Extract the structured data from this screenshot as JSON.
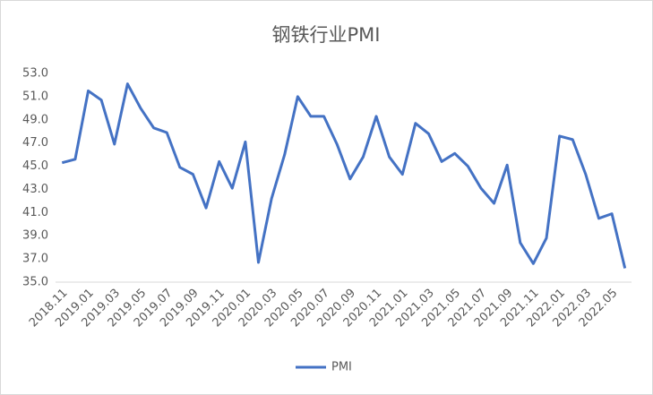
{
  "chart_data": {
    "type": "line",
    "title": "钢铁行业PMI",
    "categories": [
      "2018.11",
      null,
      "2019.01",
      null,
      "2019.03",
      null,
      "2019.05",
      null,
      "2019.07",
      null,
      "2019.09",
      null,
      "2019.11",
      null,
      "2020.01",
      null,
      "2020.03",
      null,
      "2020.05",
      null,
      "2020.07",
      null,
      "2020.09",
      null,
      "2020.11",
      null,
      "2021.01",
      null,
      "2021.03",
      null,
      "2021.05",
      null,
      "2021.07",
      null,
      "2021.09",
      null,
      "2021.11",
      null,
      "2022.01",
      null,
      "2022.03",
      null,
      "2022.05",
      null
    ],
    "series": [
      {
        "name": "PMI",
        "color": "#4472c4",
        "values": [
          45.3,
          45.6,
          51.5,
          50.7,
          46.9,
          52.1,
          50.0,
          48.3,
          47.9,
          44.9,
          44.3,
          41.4,
          45.4,
          43.1,
          47.1,
          36.7,
          42.2,
          46.0,
          51.0,
          49.3,
          49.3,
          46.9,
          43.9,
          45.8,
          49.3,
          45.8,
          44.3,
          48.7,
          47.8,
          45.4,
          46.1,
          45.0,
          43.1,
          41.8,
          45.1,
          38.4,
          36.6,
          38.8,
          47.6,
          47.3,
          44.3,
          40.5,
          40.9,
          36.2
        ]
      }
    ],
    "ylim": [
      35,
      53
    ],
    "yticks": [
      {
        "value": 35,
        "label": "35.0"
      },
      {
        "value": 37,
        "label": "37.0"
      },
      {
        "value": 39,
        "label": "39.0"
      },
      {
        "value": 41,
        "label": "41.0"
      },
      {
        "value": 43,
        "label": "43.0"
      },
      {
        "value": 45,
        "label": "45.0"
      },
      {
        "value": 47,
        "label": "47.0"
      },
      {
        "value": 49,
        "label": "49.0"
      },
      {
        "value": 51,
        "label": "51.0"
      },
      {
        "value": 53,
        "label": "53.0"
      }
    ],
    "grid": false,
    "legend": "bottom"
  }
}
